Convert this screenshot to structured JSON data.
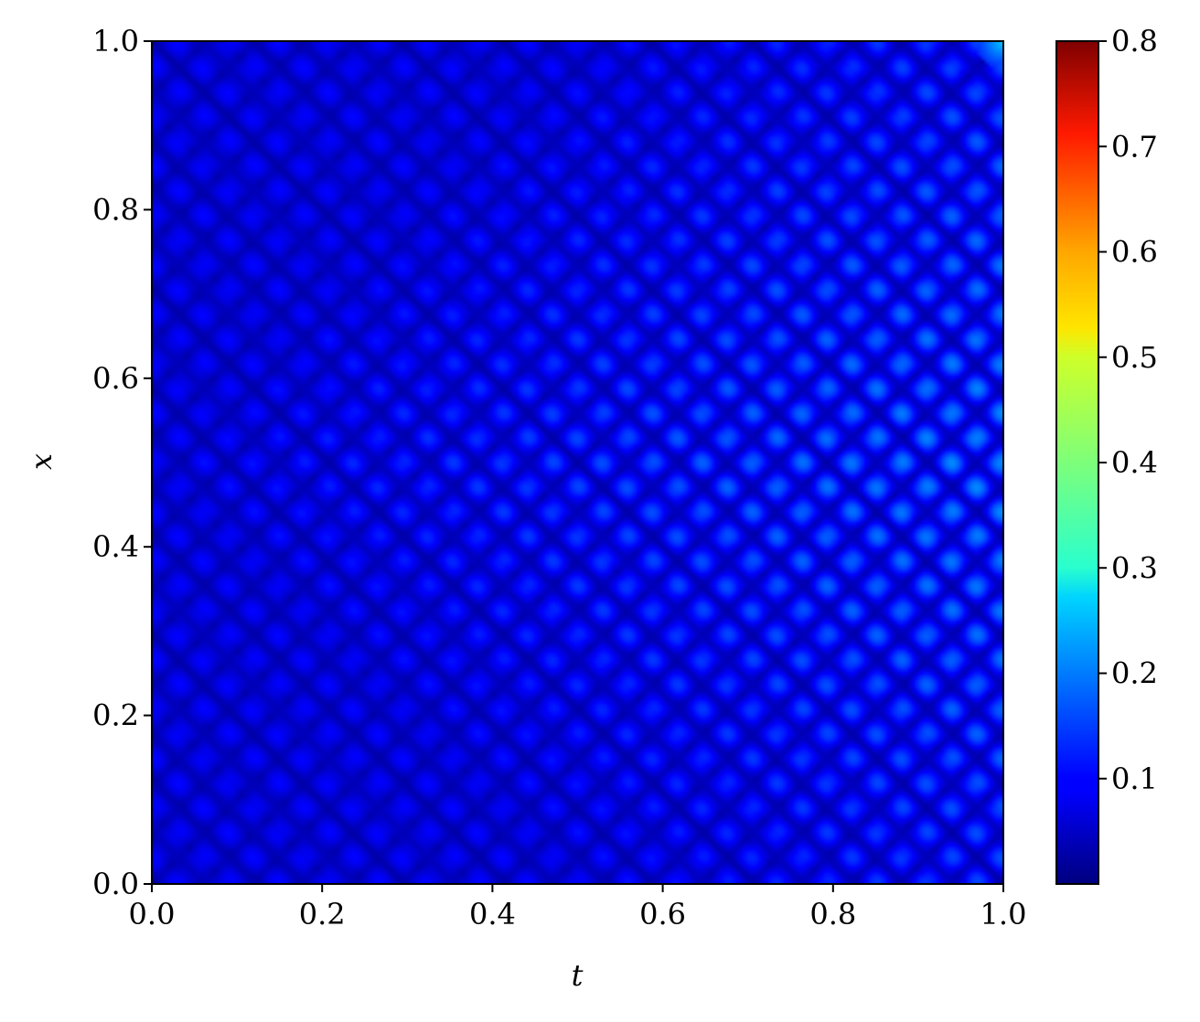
{
  "chart_data": {
    "type": "heatmap",
    "title": "",
    "xlabel": "t",
    "ylabel": "x",
    "xlim": [
      0.0,
      1.0
    ],
    "ylim": [
      0.0,
      1.0
    ],
    "xticks": [
      "0.0",
      "0.2",
      "0.4",
      "0.6",
      "0.8",
      "1.0"
    ],
    "yticks": [
      "0.0",
      "0.2",
      "0.4",
      "0.6",
      "0.8",
      "1.0"
    ],
    "colorbar": {
      "colormap": "jet",
      "range": [
        0.0,
        0.8
      ],
      "ticks": [
        "0.1",
        "0.2",
        "0.3",
        "0.4",
        "0.5",
        "0.6",
        "0.7",
        "0.8"
      ]
    },
    "grid": false,
    "legend": "none",
    "description_values": {
      "typical_magnitude": 0.06,
      "peak_value_corner_t1_x1": 0.25
    }
  }
}
